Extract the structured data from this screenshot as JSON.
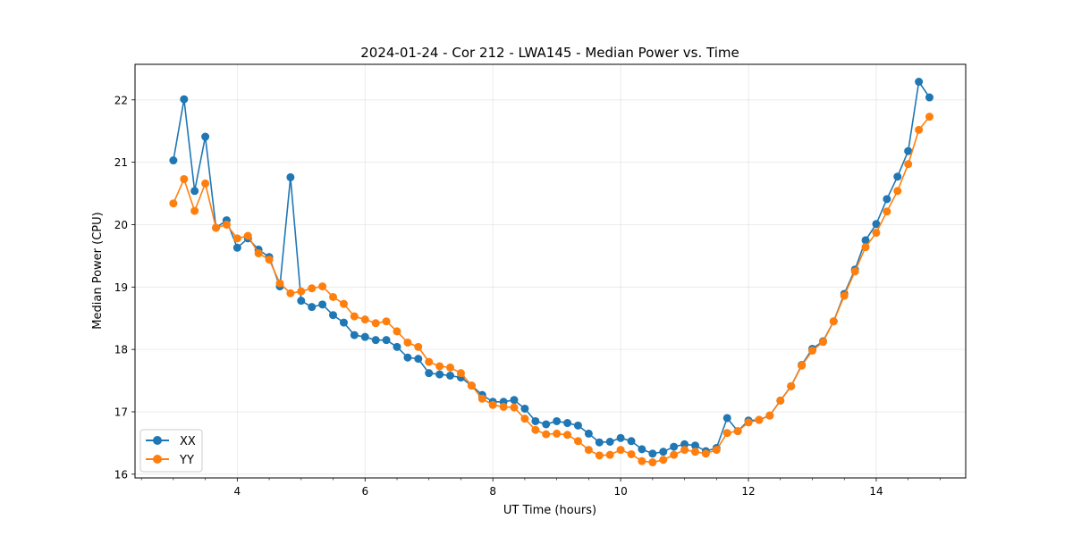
{
  "chart_data": {
    "type": "line",
    "title": "2024-01-24 - Cor 212 - LWA145 - Median Power vs. Time",
    "xlabel": "UT Time (hours)",
    "ylabel": "Median Power (CPU)",
    "xlim": [
      2.4,
      15.4
    ],
    "ylim": [
      15.94,
      22.57
    ],
    "xticks": [
      4,
      6,
      8,
      10,
      12,
      14
    ],
    "yticks": [
      16,
      17,
      18,
      19,
      20,
      21,
      22
    ],
    "grid": true,
    "legend_position": "lower-left",
    "x": [
      3.0,
      3.167,
      3.333,
      3.5,
      3.667,
      3.833,
      4.0,
      4.167,
      4.333,
      4.5,
      4.667,
      4.833,
      5.0,
      5.167,
      5.333,
      5.5,
      5.667,
      5.833,
      6.0,
      6.167,
      6.333,
      6.5,
      6.667,
      6.833,
      7.0,
      7.167,
      7.333,
      7.5,
      7.667,
      7.833,
      8.0,
      8.167,
      8.333,
      8.5,
      8.667,
      8.833,
      9.0,
      9.167,
      9.333,
      9.5,
      9.667,
      9.833,
      10.0,
      10.167,
      10.333,
      10.5,
      10.667,
      10.833,
      11.0,
      11.167,
      11.333,
      11.5,
      11.667,
      11.833,
      12.0,
      12.167,
      12.333,
      12.5,
      12.667,
      12.833,
      13.0,
      13.167,
      13.333,
      13.5,
      13.667,
      13.833,
      14.0,
      14.167,
      14.333,
      14.5,
      14.667,
      14.833
    ],
    "series": [
      {
        "name": "XX",
        "color": "#1f77b4",
        "values": [
          21.03,
          22.01,
          20.54,
          21.41,
          19.95,
          20.07,
          19.63,
          19.78,
          19.6,
          19.48,
          19.01,
          20.76,
          18.78,
          18.68,
          18.72,
          18.55,
          18.43,
          18.23,
          18.2,
          18.15,
          18.15,
          18.04,
          17.87,
          17.85,
          17.62,
          17.6,
          17.58,
          17.55,
          17.42,
          17.27,
          17.16,
          17.16,
          17.19,
          17.05,
          16.85,
          16.8,
          16.85,
          16.82,
          16.78,
          16.65,
          16.51,
          16.52,
          16.58,
          16.53,
          16.4,
          16.33,
          16.36,
          16.44,
          16.48,
          16.46,
          16.37,
          16.42,
          16.9,
          16.69,
          16.86,
          16.87,
          16.94,
          17.18,
          17.41,
          17.75,
          18.01,
          18.13,
          18.45,
          18.89,
          19.28,
          19.75,
          20.01,
          20.41,
          20.77,
          21.18,
          22.29,
          22.04
        ]
      },
      {
        "name": "YY",
        "color": "#ff7f0e",
        "values": [
          20.34,
          20.73,
          20.22,
          20.66,
          19.95,
          20.0,
          19.78,
          19.82,
          19.54,
          19.44,
          19.06,
          18.9,
          18.93,
          18.98,
          19.01,
          18.84,
          18.73,
          18.53,
          18.48,
          18.42,
          18.45,
          18.29,
          18.11,
          18.04,
          17.8,
          17.73,
          17.71,
          17.62,
          17.42,
          17.21,
          17.11,
          17.08,
          17.07,
          16.89,
          16.71,
          16.64,
          16.65,
          16.63,
          16.53,
          16.39,
          16.3,
          16.31,
          16.39,
          16.32,
          16.21,
          16.19,
          16.23,
          16.31,
          16.39,
          16.36,
          16.33,
          16.39,
          16.66,
          16.69,
          16.83,
          16.87,
          16.94,
          17.18,
          17.41,
          17.74,
          17.98,
          18.12,
          18.45,
          18.86,
          19.25,
          19.64,
          19.87,
          20.21,
          20.54,
          20.97,
          21.52,
          21.73
        ]
      }
    ]
  }
}
